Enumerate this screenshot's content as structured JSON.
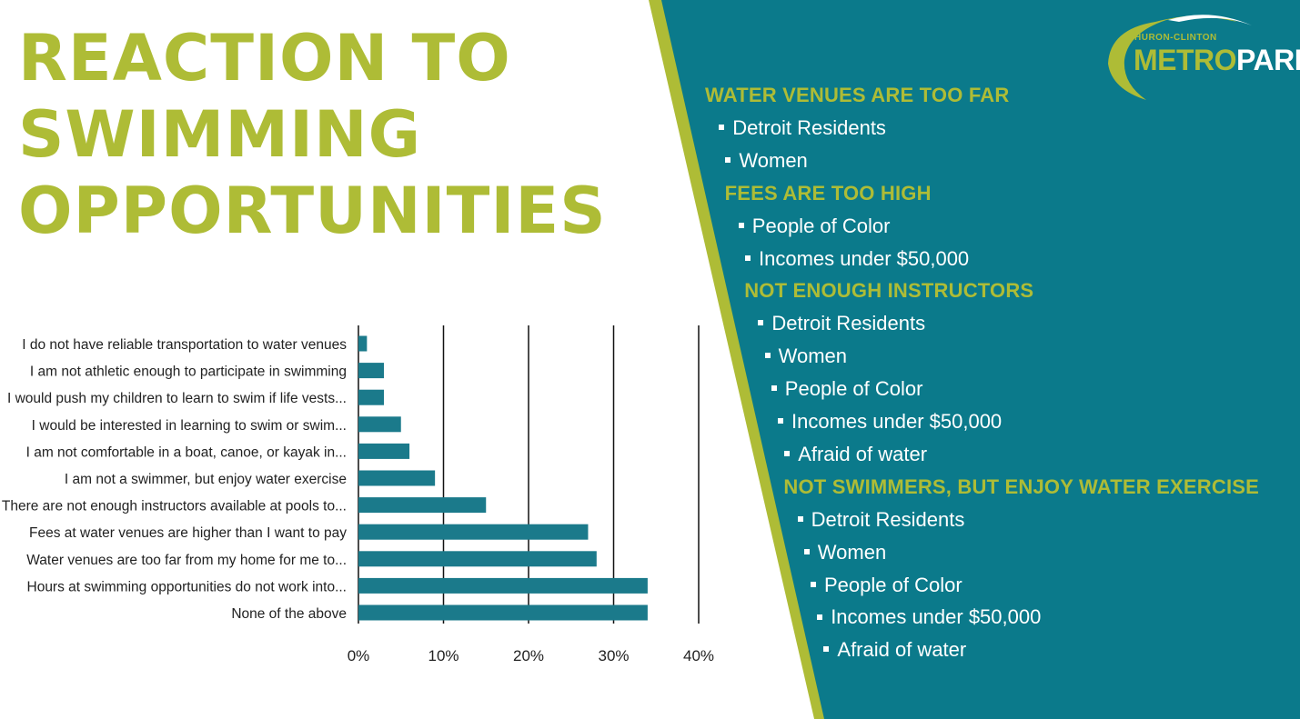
{
  "title": [
    "REACTION TO",
    "SWIMMING",
    "OPPORTUNITIES"
  ],
  "colors": {
    "teal": "#0b7a8b",
    "lime": "#aebc36",
    "bar": "#1b7a8b"
  },
  "logo": {
    "small": "HURON-CLINTON",
    "metro": "METRO",
    "parks": "PARKS"
  },
  "chart_data": {
    "type": "bar",
    "orientation": "horizontal",
    "categories": [
      "I do not have reliable transportation to water venues",
      "I am not athletic enough to participate in swimming",
      "I would push my children to learn to swim if life vests...",
      "I would be interested in learning to swim or swim...",
      "I am not comfortable in a boat, canoe, or kayak in...",
      "I am not a swimmer, but enjoy water exercise",
      "There are not enough instructors available at pools to...",
      "Fees at water venues are higher than I want to pay",
      "Water venues are too far from my home for me to...",
      "Hours at swimming opportunities do not work into...",
      "None of the above"
    ],
    "values": [
      1,
      3,
      3,
      5,
      6,
      9,
      15,
      27,
      28,
      34,
      34
    ],
    "xlim": [
      0,
      40
    ],
    "ticks": [
      "0%",
      "10%",
      "20%",
      "30%",
      "40%"
    ],
    "grid": true
  },
  "sidebar": [
    {
      "kind": "head",
      "text": "WATER VENUES ARE TOO FAR"
    },
    {
      "kind": "item",
      "text": "Detroit Residents"
    },
    {
      "kind": "item",
      "text": "Women"
    },
    {
      "kind": "head",
      "text": "FEES ARE TOO HIGH"
    },
    {
      "kind": "item",
      "text": "People of Color"
    },
    {
      "kind": "item",
      "text": "Incomes under $50,000"
    },
    {
      "kind": "head",
      "text": "NOT ENOUGH INSTRUCTORS"
    },
    {
      "kind": "item",
      "text": "Detroit Residents"
    },
    {
      "kind": "item",
      "text": "Women"
    },
    {
      "kind": "item",
      "text": "People of Color"
    },
    {
      "kind": "item",
      "text": "Incomes under $50,000"
    },
    {
      "kind": "item",
      "text": "Afraid of water"
    },
    {
      "kind": "head",
      "text": "NOT SWIMMERS, BUT ENJOY WATER EXERCISE"
    },
    {
      "kind": "item",
      "text": "Detroit Residents"
    },
    {
      "kind": "item",
      "text": "Women"
    },
    {
      "kind": "item",
      "text": "People of Color"
    },
    {
      "kind": "item",
      "text": "Incomes under $50,000"
    },
    {
      "kind": "item",
      "text": "Afraid of water"
    }
  ]
}
